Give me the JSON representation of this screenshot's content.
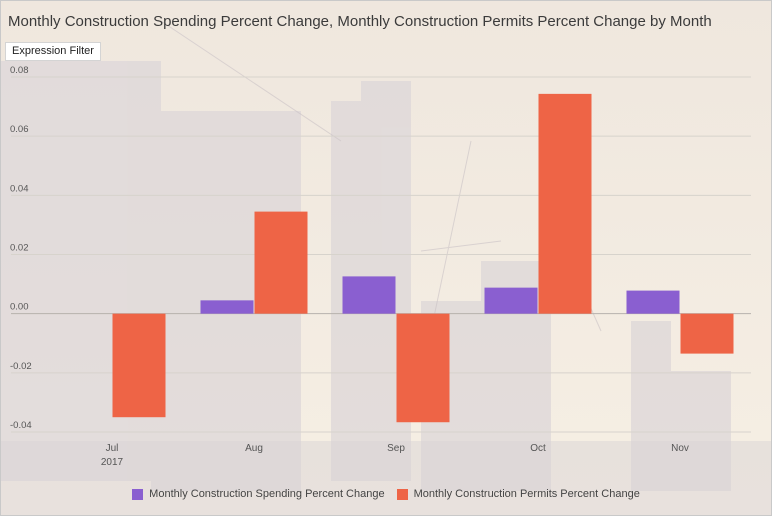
{
  "title": "Monthly Construction Spending Percent Change, Monthly Construction Permits Percent Change by Month",
  "filter_button": "Expression Filter",
  "colors": {
    "spending": "#8a5fd0",
    "permits": "#ee6446",
    "grid": "#d7d3cc",
    "axis_text": "#555555"
  },
  "chart_data": {
    "type": "bar",
    "categories": [
      "Jul",
      "Aug",
      "Sep",
      "Oct",
      "Nov"
    ],
    "year_label": "2017",
    "ylim": [
      -0.04,
      0.08
    ],
    "yticks": [
      "0.08",
      "0.06",
      "0.04",
      "0.02",
      "0.00",
      "-0.02",
      "-0.04"
    ],
    "series": [
      {
        "name": "Monthly Construction Spending Percent Change",
        "values": [
          null,
          0.0045,
          0.0126,
          0.0088,
          0.0078
        ]
      },
      {
        "name": "Monthly Construction Permits Percent Change",
        "values": [
          -0.035,
          0.0345,
          -0.0367,
          0.0743,
          -0.0135
        ]
      }
    ]
  },
  "legend": [
    {
      "label": "Monthly Construction Spending Percent Change"
    },
    {
      "label": "Monthly Construction Permits Percent Change"
    }
  ]
}
